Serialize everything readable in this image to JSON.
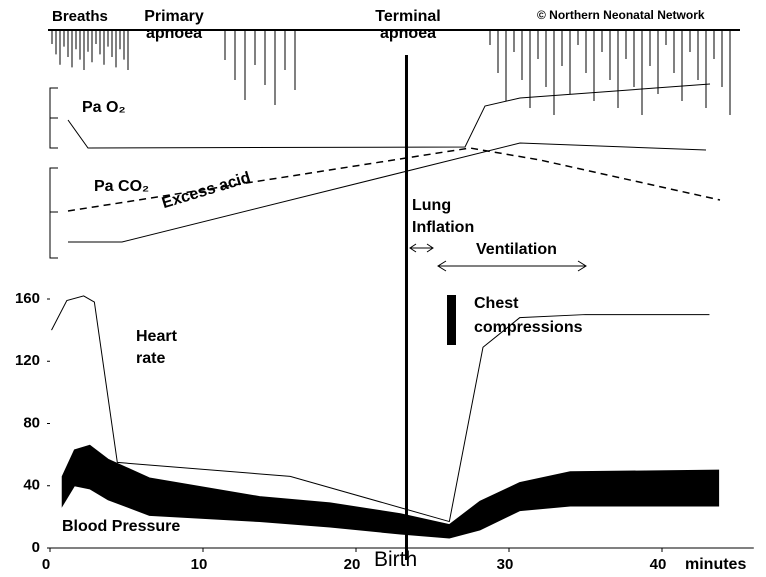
{
  "chart_data": {
    "type": "line",
    "x_label": "minutes",
    "xlim": [
      0,
      46
    ],
    "xticks": [
      0,
      10,
      20,
      30,
      40
    ],
    "ylim": [
      0,
      160
    ],
    "yticks": [
      0,
      40,
      80,
      120,
      160
    ],
    "birth": {
      "label": "Birth",
      "x": 23.3
    },
    "series": [
      {
        "name": "Heart rate",
        "color": "#000000",
        "x": [
          0.1,
          1.1,
          2.2,
          2.9,
          4.4,
          15.7,
          26.1,
          28.3,
          30.7,
          35,
          43.1
        ],
        "values": [
          140,
          159,
          162,
          158,
          55,
          46,
          17,
          129,
          148,
          150,
          150
        ]
      },
      {
        "name": "Blood Pressure",
        "color": "#000000",
        "x": [
          0.8,
          1.6,
          2.6,
          3.8,
          6.5,
          13.7,
          18.3,
          22.9,
          26.1,
          28.1,
          30.7,
          34,
          43.7
        ],
        "upper": [
          46,
          63,
          66,
          57,
          45,
          33,
          29,
          22,
          15,
          30,
          42,
          49,
          50
        ],
        "lower": [
          27,
          40,
          38,
          31,
          21,
          17,
          13.5,
          9,
          6.4,
          11.6,
          24,
          27,
          27
        ]
      }
    ],
    "annotations": [
      "Breaths",
      "Primary apnoea",
      "Terminal apnoea",
      "© Northern Neonatal Network",
      "Pa O₂",
      "Pa CO₂",
      "Excess acid",
      "Lung Inflation",
      "Ventilation",
      "Chest compressions"
    ]
  }
}
